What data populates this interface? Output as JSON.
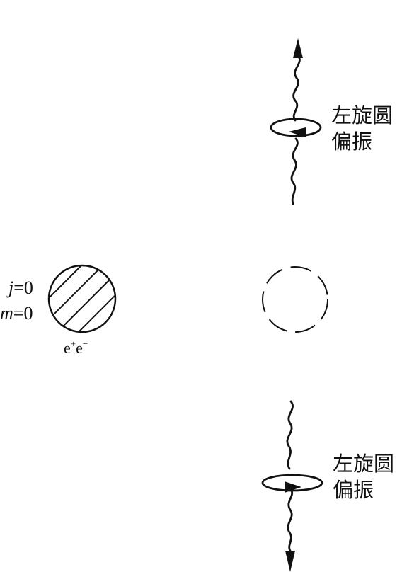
{
  "atom": {
    "j_symbol": "j",
    "j_value": "=0",
    "m_symbol": "m",
    "m_value": "=0",
    "particle_base": "e",
    "particle_plus": "+",
    "particle_minus": "−"
  },
  "top_photon": {
    "label_line1": "左旋圆",
    "label_line2": "偏振"
  },
  "bottom_photon": {
    "label_line1": "左旋圆",
    "label_line2": "偏振"
  },
  "colors": {
    "ink": "#111111",
    "background": "#ffffff"
  }
}
